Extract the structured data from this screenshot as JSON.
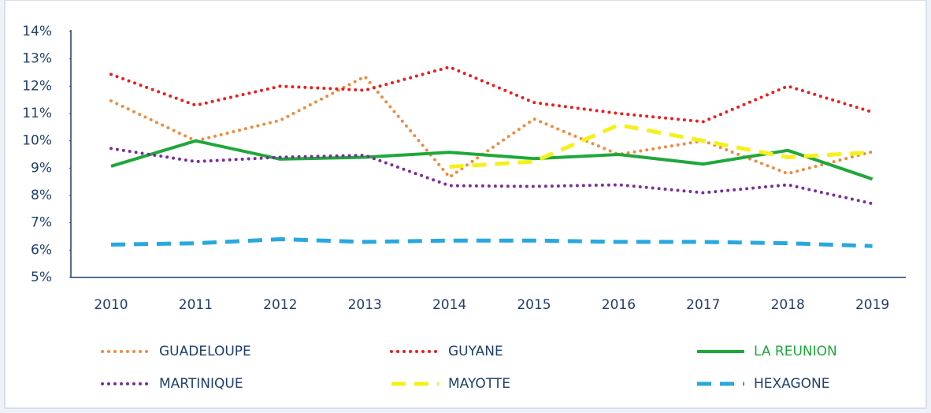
{
  "chart_data": {
    "type": "line",
    "categories": [
      "2010",
      "2011",
      "2012",
      "2013",
      "2014",
      "2015",
      "2016",
      "2017",
      "2018",
      "2019"
    ],
    "series": [
      {
        "name": "GUADELOUPE",
        "color": "#f08a3c",
        "style": "dotted",
        "values": [
          11.46,
          10.0,
          10.75,
          12.35,
          8.67,
          10.8,
          9.5,
          10.0,
          8.8,
          9.6
        ]
      },
      {
        "name": "GUYANE",
        "color": "#f01c1c",
        "style": "dotted",
        "values": [
          12.43,
          11.3,
          12.0,
          11.85,
          12.7,
          11.4,
          11.0,
          10.7,
          12.0,
          11.05
        ]
      },
      {
        "name": "LA REUNION",
        "color": "#1fa83a",
        "style": "solid",
        "values": [
          9.07,
          10.0,
          9.33,
          9.4,
          9.58,
          9.35,
          9.5,
          9.15,
          9.65,
          8.6
        ]
      },
      {
        "name": "MARTINIQUE",
        "color": "#7b2d9e",
        "style": "dotted",
        "values": [
          9.72,
          9.24,
          9.4,
          9.47,
          8.36,
          8.33,
          8.39,
          8.1,
          8.39,
          7.7
        ]
      },
      {
        "name": "MAYOTTE",
        "color": "#f5f01a",
        "style": "dashed",
        "values": [
          null,
          null,
          null,
          null,
          9.05,
          9.24,
          10.58,
          10.0,
          9.4,
          9.58
        ]
      },
      {
        "name": "HEXAGONE",
        "color": "#29a8e0",
        "style": "dashed",
        "values": [
          6.2,
          6.25,
          6.4,
          6.3,
          6.35,
          6.35,
          6.3,
          6.3,
          6.25,
          6.15
        ]
      }
    ],
    "ylim": [
      5,
      14
    ],
    "yticks": [
      {
        "value": 5,
        "label": "5%"
      },
      {
        "value": 6,
        "label": "6%"
      },
      {
        "value": 7,
        "label": "7%"
      },
      {
        "value": 8,
        "label": "8%"
      },
      {
        "value": 9,
        "label": "9%"
      },
      {
        "value": 10,
        "label": "10%"
      },
      {
        "value": 11,
        "label": "11%"
      },
      {
        "value": 12,
        "label": "12%"
      },
      {
        "value": 13,
        "label": "13%"
      },
      {
        "value": 14,
        "label": "14%"
      }
    ],
    "grid": false
  }
}
